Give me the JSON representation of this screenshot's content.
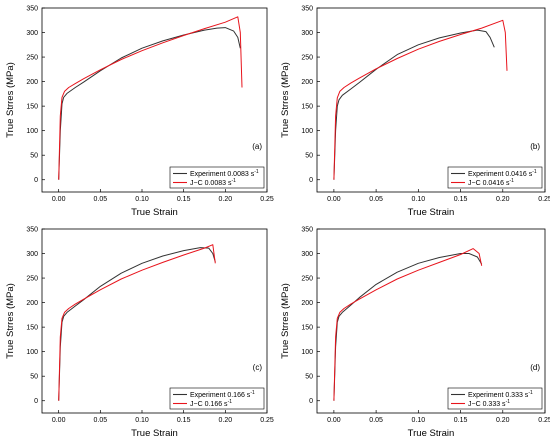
{
  "figure": {
    "xlabel": "True Strain",
    "ylabel": "True Strres (MPa)"
  },
  "colors": {
    "experiment": "#333333",
    "jc": "#e8141c",
    "axis": "#000000"
  },
  "chart_data": [
    {
      "type": "line",
      "panel_label": "(a)",
      "xlabel": "True Strain",
      "ylabel": "True Strres (MPa)",
      "xlim": [
        -0.02,
        0.25
      ],
      "ylim": [
        -25,
        350
      ],
      "xticks": [
        "0.00",
        "0.05",
        "0.10",
        "0.15",
        "0.20",
        "0.25"
      ],
      "yticks": [
        "0",
        "50",
        "100",
        "150",
        "200",
        "250",
        "300",
        "350"
      ],
      "legend_position": "bottom-right",
      "series": [
        {
          "name": "Experiment 0.0083 s",
          "superscript": "-1",
          "color": "#333333",
          "x": [
            0,
            0.002,
            0.004,
            0.006,
            0.01,
            0.02,
            0.03,
            0.05,
            0.075,
            0.1,
            0.125,
            0.15,
            0.175,
            0.19,
            0.2,
            0.21,
            0.215,
            0.218
          ],
          "y": [
            0,
            100,
            155,
            168,
            176,
            188,
            199,
            222,
            248,
            268,
            283,
            295,
            305,
            309,
            310,
            303,
            290,
            268
          ]
        },
        {
          "name": "J−C 0.0083 s",
          "superscript": "-1",
          "color": "#e8141c",
          "x": [
            0,
            0.002,
            0.004,
            0.007,
            0.012,
            0.02,
            0.03,
            0.05,
            0.075,
            0.1,
            0.125,
            0.15,
            0.175,
            0.2,
            0.215,
            0.218,
            0.22
          ],
          "y": [
            0,
            130,
            168,
            180,
            188,
            196,
            206,
            224,
            245,
            263,
            279,
            294,
            308,
            321,
            332,
            300,
            188
          ]
        }
      ]
    },
    {
      "type": "line",
      "panel_label": "(b)",
      "xlabel": "True Strain",
      "ylabel": "True Strres (MPa)",
      "xlim": [
        -0.02,
        0.25
      ],
      "ylim": [
        -25,
        350
      ],
      "xticks": [
        "0.00",
        "0.05",
        "0.10",
        "0.15",
        "0.20",
        "0.25"
      ],
      "yticks": [
        "0",
        "50",
        "100",
        "150",
        "200",
        "250",
        "300",
        "350"
      ],
      "legend_position": "bottom-right",
      "series": [
        {
          "name": "Experiment 0.0416 s",
          "superscript": "-1",
          "color": "#333333",
          "x": [
            0,
            0.002,
            0.004,
            0.006,
            0.01,
            0.02,
            0.03,
            0.05,
            0.075,
            0.1,
            0.125,
            0.15,
            0.17,
            0.18,
            0.185,
            0.19
          ],
          "y": [
            0,
            100,
            150,
            163,
            172,
            185,
            198,
            225,
            255,
            275,
            289,
            299,
            305,
            302,
            290,
            270
          ]
        },
        {
          "name": "J−C 0.0416 s",
          "superscript": "-1",
          "color": "#e8141c",
          "x": [
            0,
            0.002,
            0.004,
            0.007,
            0.012,
            0.02,
            0.03,
            0.05,
            0.075,
            0.1,
            0.125,
            0.15,
            0.175,
            0.2,
            0.203,
            0.205
          ],
          "y": [
            0,
            130,
            167,
            180,
            188,
            197,
            207,
            226,
            247,
            266,
            282,
            296,
            309,
            325,
            300,
            222
          ]
        }
      ]
    },
    {
      "type": "line",
      "panel_label": "(c)",
      "xlabel": "True Strain",
      "ylabel": "True Strres (MPa)",
      "xlim": [
        -0.02,
        0.25
      ],
      "ylim": [
        -25,
        350
      ],
      "xticks": [
        "0.00",
        "0.05",
        "0.10",
        "0.15",
        "0.20",
        "0.25"
      ],
      "yticks": [
        "0",
        "50",
        "100",
        "150",
        "200",
        "250",
        "300",
        "350"
      ],
      "legend_position": "bottom-right",
      "series": [
        {
          "name": "Experiment 0.166 s",
          "superscript": "-1",
          "color": "#333333",
          "x": [
            0,
            0.002,
            0.004,
            0.006,
            0.01,
            0.02,
            0.03,
            0.05,
            0.075,
            0.1,
            0.125,
            0.15,
            0.17,
            0.18,
            0.185,
            0.188
          ],
          "y": [
            0,
            110,
            160,
            172,
            180,
            193,
            206,
            233,
            260,
            280,
            295,
            306,
            312,
            311,
            300,
            283
          ]
        },
        {
          "name": "J−C 0.166 s",
          "superscript": "-1",
          "color": "#e8141c",
          "x": [
            0,
            0.002,
            0.004,
            0.007,
            0.012,
            0.02,
            0.03,
            0.05,
            0.075,
            0.1,
            0.125,
            0.15,
            0.175,
            0.185,
            0.188
          ],
          "y": [
            0,
            130,
            168,
            180,
            188,
            197,
            207,
            226,
            248,
            266,
            282,
            297,
            311,
            318,
            280
          ]
        }
      ]
    },
    {
      "type": "line",
      "panel_label": "(d)",
      "xlabel": "True Strain",
      "ylabel": "True Strres (MPa)",
      "xlim": [
        -0.02,
        0.25
      ],
      "ylim": [
        -25,
        350
      ],
      "xticks": [
        "0.00",
        "0.05",
        "0.10",
        "0.15",
        "0.20",
        "0.25"
      ],
      "yticks": [
        "0",
        "50",
        "100",
        "150",
        "200",
        "250",
        "300",
        "350"
      ],
      "legend_position": "bottom-right",
      "series": [
        {
          "name": "Experiment 0.333 s",
          "superscript": "-1",
          "color": "#333333",
          "x": [
            0,
            0.002,
            0.004,
            0.006,
            0.01,
            0.02,
            0.03,
            0.05,
            0.075,
            0.1,
            0.125,
            0.15,
            0.16,
            0.17,
            0.175
          ],
          "y": [
            0,
            110,
            160,
            172,
            180,
            195,
            210,
            237,
            262,
            280,
            292,
            300,
            300,
            293,
            278
          ]
        },
        {
          "name": "J−C 0.333 s",
          "superscript": "-1",
          "color": "#e8141c",
          "x": [
            0,
            0.002,
            0.004,
            0.007,
            0.012,
            0.02,
            0.03,
            0.05,
            0.075,
            0.1,
            0.125,
            0.15,
            0.165,
            0.172,
            0.175
          ],
          "y": [
            0,
            130,
            168,
            180,
            188,
            197,
            207,
            226,
            248,
            266,
            282,
            298,
            310,
            300,
            275
          ]
        }
      ]
    }
  ]
}
